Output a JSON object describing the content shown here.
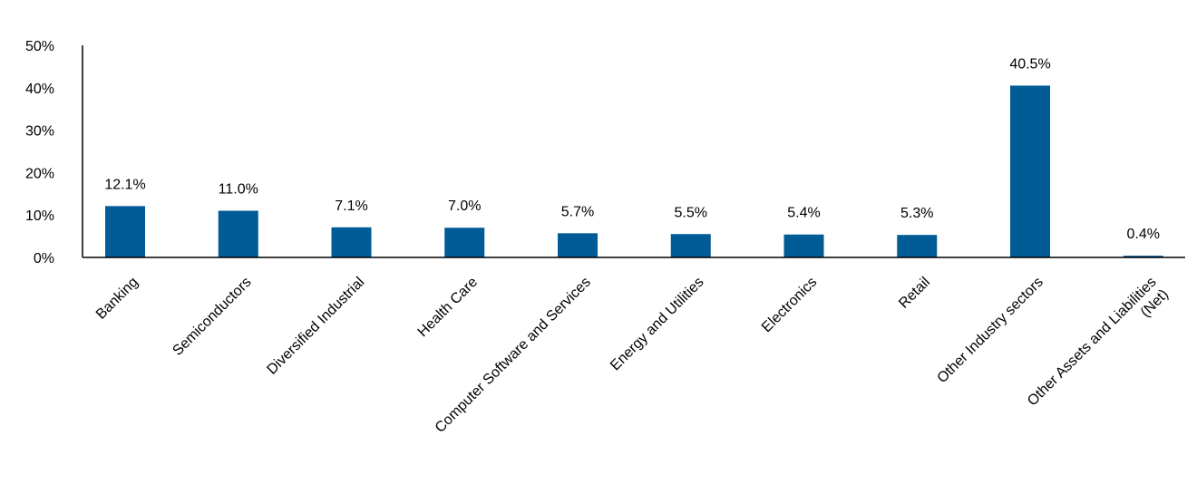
{
  "chart_data": {
    "type": "bar",
    "title": "",
    "xlabel": "",
    "ylabel": "",
    "categories": [
      "Banking",
      "Semiconductors",
      "Diversified Industrial",
      "Health Care",
      "Computer Software and Services",
      "Energy and Utilities",
      "Electronics",
      "Retail",
      "Other Industry sectors",
      "Other Assets and Liabilities (Net)"
    ],
    "category_lines": [
      [
        "Banking"
      ],
      [
        "Semiconductors"
      ],
      [
        "Diversified Industrial"
      ],
      [
        "Health Care"
      ],
      [
        "Computer Software and Services"
      ],
      [
        "Energy and Utilities"
      ],
      [
        "Electronics"
      ],
      [
        "Retail"
      ],
      [
        "Other Industry sectors"
      ],
      [
        "Other Assets and Liabilities",
        "(Net)"
      ]
    ],
    "values": [
      12.1,
      11.0,
      7.1,
      7.0,
      5.7,
      5.5,
      5.4,
      5.3,
      40.5,
      0.4
    ],
    "value_labels": [
      "12.1%",
      "11.0%",
      "7.1%",
      "7.0%",
      "5.7%",
      "5.5%",
      "5.4%",
      "5.3%",
      "40.5%",
      "0.4%"
    ],
    "ylim": [
      0,
      50
    ],
    "yticks": [
      0,
      10,
      20,
      30,
      40,
      50
    ],
    "ytick_labels": [
      "0%",
      "10%",
      "20%",
      "30%",
      "40%",
      "50%"
    ],
    "grid": false,
    "legend": "none",
    "bar_color": "#005b96"
  }
}
